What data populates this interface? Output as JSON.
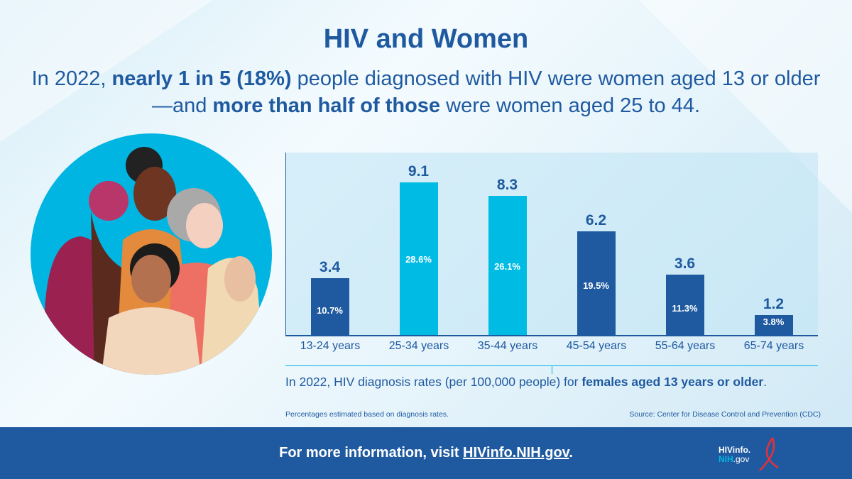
{
  "title": "HIV and Women",
  "subtitle": {
    "p1": "In 2022, ",
    "b1": "nearly 1 in 5 (18%)",
    "p2": " people diagnosed with HIV were women aged 13 or older—and ",
    "b2": "more than half of those",
    "p3": " were women aged 25 to 44."
  },
  "chart_data": {
    "type": "bar",
    "categories": [
      "13-24 years",
      "25-34 years",
      "35-44 years",
      "45-54 years",
      "55-64 years",
      "65-74 years"
    ],
    "values": [
      3.4,
      9.1,
      8.3,
      6.2,
      3.6,
      1.2
    ],
    "value_labels": [
      "3.4",
      "9.1",
      "8.3",
      "6.2",
      "3.6",
      "1.2"
    ],
    "percent_labels": [
      "10.7%",
      "28.6%",
      "26.1%",
      "19.5%",
      "11.3%",
      "3.8%"
    ],
    "bar_colors": [
      "#1f5aa0",
      "#00bce4",
      "#00bce4",
      "#1f5aa0",
      "#1f5aa0",
      "#1f5aa0"
    ],
    "ylim": [
      0,
      10.9
    ],
    "grid": false,
    "caption": {
      "p1": "In 2022, HIV diagnosis rates (per 100,000 people) for ",
      "b1": "females aged 13 years or older",
      "p2": "."
    }
  },
  "note": "Percentages estimated based on diagnosis rates.",
  "source": "Source: Center for Disease Control and Prevention (CDC)",
  "footer": {
    "text": "For more information, visit ",
    "link": "HIVinfo.NIH.gov",
    "end": "."
  },
  "logo": {
    "line1": "HIVinfo.",
    "line2a": "NIH",
    "line2b": ".gov"
  },
  "colors": {
    "primary": "#1f5aa0",
    "accent": "#00b5e2",
    "ribbon": "#e8303a"
  }
}
